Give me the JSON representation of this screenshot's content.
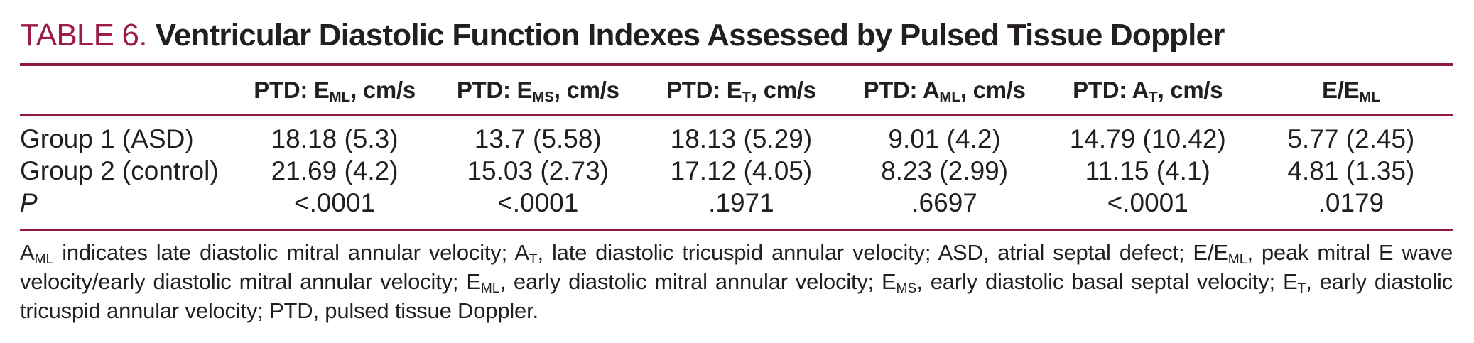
{
  "colors": {
    "accent": "#9d1c43",
    "rule": "#8e1a3c",
    "text": "#231f20"
  },
  "title": {
    "label": "TABLE 6.",
    "text": "Ventricular Diastolic Function Indexes Assessed by Pulsed Tissue Doppler"
  },
  "table": {
    "columns": [
      {
        "segments": [
          {
            "text": "PTD: E"
          },
          {
            "text": "ML",
            "sub": true
          },
          {
            "text": ", cm/s"
          }
        ]
      },
      {
        "segments": [
          {
            "text": "PTD: E"
          },
          {
            "text": "MS",
            "sub": true
          },
          {
            "text": ", cm/s"
          }
        ]
      },
      {
        "segments": [
          {
            "text": "PTD: E"
          },
          {
            "text": "T",
            "sub": true
          },
          {
            "text": ", cm/s"
          }
        ]
      },
      {
        "segments": [
          {
            "text": "PTD: A"
          },
          {
            "text": "ML",
            "sub": true
          },
          {
            "text": ", cm/s"
          }
        ]
      },
      {
        "segments": [
          {
            "text": "PTD: A"
          },
          {
            "text": "T",
            "sub": true
          },
          {
            "text": ", cm/s"
          }
        ]
      },
      {
        "segments": [
          {
            "text": "E/E"
          },
          {
            "text": "ML",
            "sub": true
          }
        ]
      }
    ],
    "rows": [
      {
        "label": "Group 1 (ASD)",
        "values": [
          "18.18 (5.3)",
          "13.7 (5.58)",
          "18.13 (5.29)",
          "9.01 (4.2)",
          "14.79 (10.42)",
          "5.77 (2.45)"
        ]
      },
      {
        "label": "Group 2 (control)",
        "values": [
          "21.69 (4.2)",
          "15.03 (2.73)",
          "17.12 (4.05)",
          "8.23 (2.99)",
          "11.15 (4.1)",
          "4.81 (1.35)"
        ]
      },
      {
        "label": "P",
        "values": [
          "<.0001",
          "<.0001",
          ".1971",
          ".6697",
          "<.0001",
          ".0179"
        ]
      }
    ]
  },
  "footnote": {
    "segments": [
      {
        "text": "A"
      },
      {
        "text": "ML",
        "sub": true
      },
      {
        "text": " indicates late diastolic mitral annular velocity; A"
      },
      {
        "text": "T",
        "sub": true
      },
      {
        "text": ", late diastolic tricuspid annular velocity; ASD, atrial septal defect; E/E"
      },
      {
        "text": "ML",
        "sub": true
      },
      {
        "text": ", peak mitral E wave velocity/early diastolic mitral annular velocity; E"
      },
      {
        "text": "ML",
        "sub": true
      },
      {
        "text": ", early diastolic mitral annular velocity; E"
      },
      {
        "text": "MS",
        "sub": true
      },
      {
        "text": ", early diastolic basal septal velocity; E"
      },
      {
        "text": "T",
        "sub": true
      },
      {
        "text": ", early diastolic tricuspid annular velocity; PTD, pulsed tissue Doppler."
      }
    ]
  }
}
